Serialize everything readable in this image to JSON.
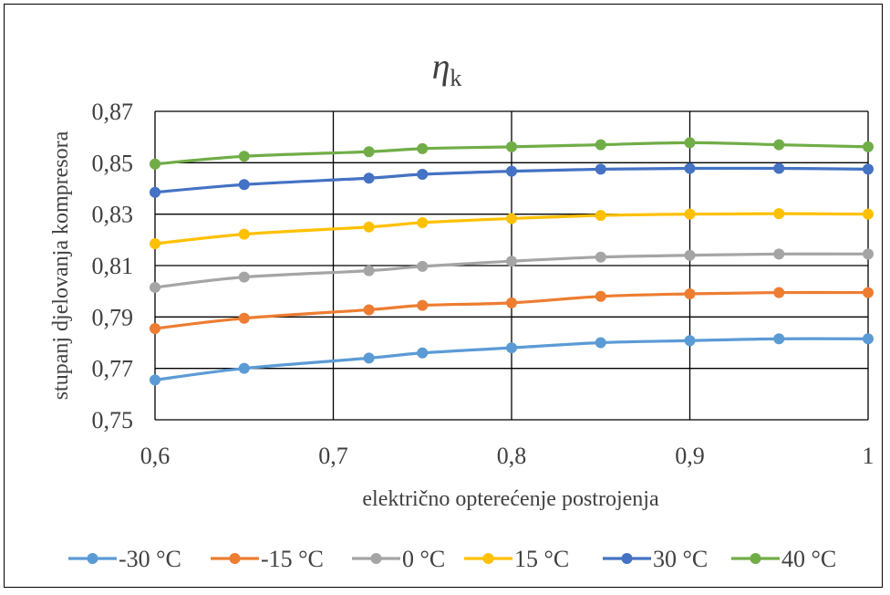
{
  "chart_data": {
    "type": "line",
    "title_main": "η",
    "title_sub": "k",
    "xlabel": "električno opterećenje postrojenja",
    "ylabel": "stupanj djelovanja kompresora",
    "xlim": [
      0.6,
      1.0
    ],
    "ylim": [
      0.75,
      0.87
    ],
    "x_ticks": [
      0.6,
      0.7,
      0.8,
      0.9,
      1.0
    ],
    "x_tick_labels": [
      "0,6",
      "0,7",
      "0,8",
      "0,9",
      "1"
    ],
    "y_ticks": [
      0.75,
      0.77,
      0.79,
      0.81,
      0.83,
      0.85,
      0.87
    ],
    "y_tick_labels": [
      "0,75",
      "0,77",
      "0,79",
      "0,81",
      "0,83",
      "0,85",
      "0,87"
    ],
    "grid": true,
    "legend_position": "bottom",
    "x": [
      0.6,
      0.65,
      0.72,
      0.75,
      0.8,
      0.85,
      0.9,
      0.95,
      1.0
    ],
    "series": [
      {
        "name": "-30 °C",
        "color": "#5B9BD5",
        "values": [
          0.7655,
          0.77,
          0.774,
          0.776,
          0.778,
          0.78,
          0.7808,
          0.7815,
          0.7815
        ]
      },
      {
        "name": "-15 °C",
        "color": "#ED7D31",
        "values": [
          0.7855,
          0.7895,
          0.7928,
          0.7945,
          0.7955,
          0.798,
          0.799,
          0.7995,
          0.7995
        ]
      },
      {
        "name": "0 °C",
        "color": "#A5A5A5",
        "values": [
          0.8015,
          0.8055,
          0.808,
          0.8097,
          0.8117,
          0.8133,
          0.814,
          0.8145,
          0.8145
        ]
      },
      {
        "name": "15 °C",
        "color": "#FFC000",
        "values": [
          0.8185,
          0.8222,
          0.825,
          0.8267,
          0.8283,
          0.8295,
          0.83,
          0.8302,
          0.83
        ]
      },
      {
        "name": "30 °C",
        "color": "#4472C4",
        "values": [
          0.8385,
          0.8415,
          0.844,
          0.8455,
          0.8467,
          0.8475,
          0.8478,
          0.8478,
          0.8475
        ]
      },
      {
        "name": "40 °C",
        "color": "#70AD47",
        "values": [
          0.8495,
          0.8525,
          0.8543,
          0.8555,
          0.8562,
          0.857,
          0.8578,
          0.857,
          0.8562
        ]
      }
    ]
  }
}
